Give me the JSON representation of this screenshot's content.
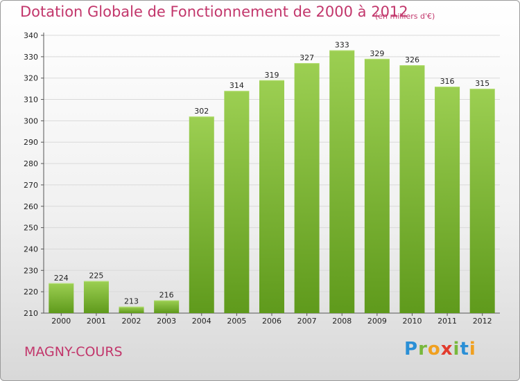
{
  "header": {
    "title": "Dotation Globale de Fonctionnement de 2000 à 2012",
    "subtitle": "(en milliers d'€)"
  },
  "footer": {
    "town": "MAGNY-COURS",
    "brand": "Proxiti"
  },
  "colors": {
    "title": "#c2366b",
    "bar_top": "#9ccf52",
    "bar_bottom": "#5f9a1c",
    "grid": "#d9d9d9"
  },
  "chart_data": {
    "type": "bar",
    "title": "Dotation Globale de Fonctionnement de 2000 à 2012",
    "subtitle": "(en milliers d'€)",
    "xlabel": "",
    "ylabel": "",
    "categories": [
      "2000",
      "2001",
      "2002",
      "2003",
      "2004",
      "2005",
      "2006",
      "2007",
      "2008",
      "2009",
      "2010",
      "2011",
      "2012"
    ],
    "values": [
      224,
      225,
      213,
      216,
      302,
      314,
      319,
      327,
      333,
      329,
      326,
      316,
      315
    ],
    "ylim": [
      210,
      340
    ],
    "yticks": [
      210,
      220,
      230,
      240,
      250,
      260,
      270,
      280,
      290,
      300,
      310,
      320,
      330,
      340
    ],
    "grid": true,
    "data_labels": true
  }
}
